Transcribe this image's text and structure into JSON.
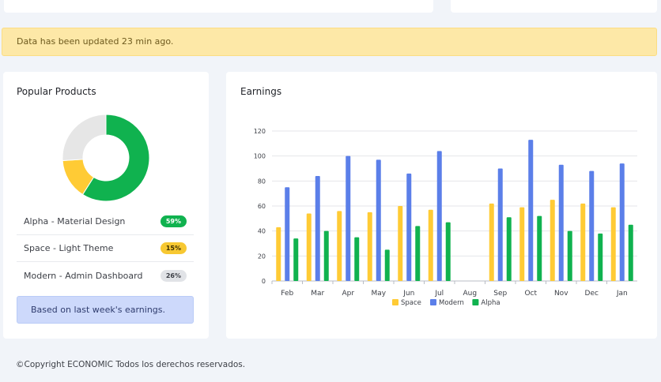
{
  "alert": {
    "text": "Data has been updated 23 min ago."
  },
  "popular_products": {
    "title": "Popular Products",
    "items": [
      {
        "name": "Alpha - Material Design",
        "percent": "59%",
        "value": 59,
        "color": "#10b24f",
        "badge_style": "green"
      },
      {
        "name": "Space - Light Theme",
        "percent": "15%",
        "value": 15,
        "color": "#ffcb35",
        "badge_style": "yellow"
      },
      {
        "name": "Modern - Admin Dashboard",
        "percent": "26%",
        "value": 26,
        "color": "#e6e6e6",
        "badge_style": "gray"
      }
    ],
    "note": "Based on last week's earnings."
  },
  "earnings": {
    "title": "Earnings"
  },
  "chart_data": {
    "type": "bar",
    "categories": [
      "Feb",
      "Mar",
      "Apr",
      "May",
      "Jun",
      "Jul",
      "Aug",
      "Sep",
      "Oct",
      "Nov",
      "Dec",
      "Jan"
    ],
    "series": [
      {
        "name": "Space",
        "color": "#ffcb35",
        "values": [
          43,
          54,
          56,
          55,
          60,
          57,
          null,
          62,
          59,
          65,
          62,
          59
        ]
      },
      {
        "name": "Modern",
        "color": "#5b7fe9",
        "values": [
          75,
          84,
          100,
          97,
          86,
          104,
          null,
          90,
          113,
          93,
          88,
          94
        ]
      },
      {
        "name": "Alpha",
        "color": "#10b24f",
        "values": [
          34,
          40,
          35,
          25,
          44,
          47,
          null,
          51,
          52,
          40,
          38,
          45
        ]
      }
    ],
    "ylim": [
      0,
      120
    ],
    "yticks": [
      0,
      20,
      40,
      60,
      80,
      100,
      120
    ],
    "grid": true,
    "legend": "bottom"
  },
  "footer": {
    "text": "©Copyright ECONOMIC Todos los derechos reservados."
  }
}
